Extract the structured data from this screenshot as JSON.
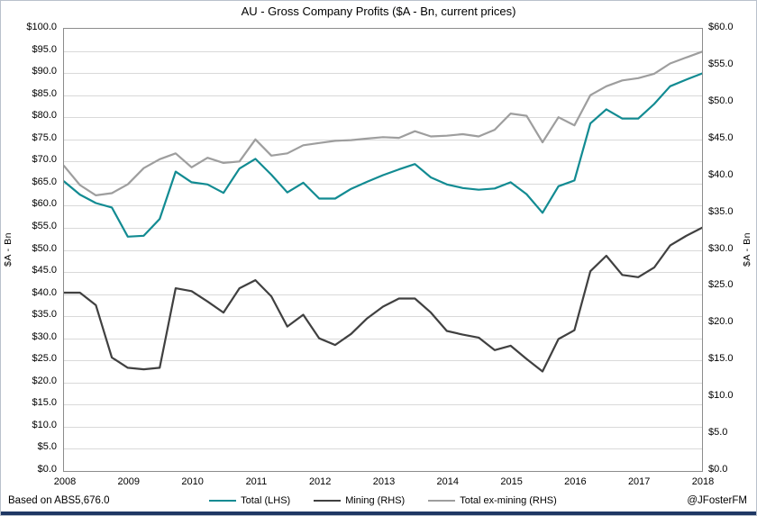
{
  "title": "AU - Gross Company Profits ($A - Bn, current prices)",
  "footer": {
    "left": "Based on ABS5,676.0",
    "right": "@JFosterFM"
  },
  "colors": {
    "total": "#128b92",
    "mining": "#404040",
    "ex_mining": "#9e9e9e",
    "gridline": "#d9d9d9",
    "plot_border": "#8c8c8c",
    "bottom_bar": "#1f3864"
  },
  "legend": [
    {
      "label": "Total (LHS)",
      "color": "#128b92"
    },
    {
      "label": "Mining (RHS)",
      "color": "#404040"
    },
    {
      "label": "Total ex-mining (RHS)",
      "color": "#9e9e9e"
    }
  ],
  "chart_data": {
    "type": "line",
    "title": "AU - Gross Company Profits ($A - Bn, current prices)",
    "grid": true,
    "legend_position": "bottom",
    "left_axis": {
      "label": "$A - Bn",
      "ylim": [
        0,
        100
      ],
      "step": 5,
      "tick_labels": [
        "$100.0",
        "$95.0",
        "$90.0",
        "$85.0",
        "$80.0",
        "$75.0",
        "$70.0",
        "$65.0",
        "$60.0",
        "$55.0",
        "$50.0",
        "$45.0",
        "$40.0",
        "$35.0",
        "$30.0",
        "$25.0",
        "$20.0",
        "$15.0",
        "$10.0",
        "$5.0",
        "$0.0"
      ]
    },
    "right_axis": {
      "label": "$A - Bn",
      "ylim": [
        0,
        60
      ],
      "step": 5,
      "tick_labels": [
        "$60.0",
        "$55.0",
        "$50.0",
        "$45.0",
        "$40.0",
        "$35.0",
        "$30.0",
        "$25.0",
        "$20.0",
        "$15.0",
        "$10.0",
        "$5.0",
        "$0.0"
      ]
    },
    "x_tick_labels": [
      "2008",
      "2009",
      "2010",
      "2011",
      "2012",
      "2013",
      "2014",
      "2015",
      "2016",
      "2017",
      "2018"
    ],
    "x": [
      "2008Q1",
      "2008Q2",
      "2008Q3",
      "2008Q4",
      "2009Q1",
      "2009Q2",
      "2009Q3",
      "2009Q4",
      "2010Q1",
      "2010Q2",
      "2010Q3",
      "2010Q4",
      "2011Q1",
      "2011Q2",
      "2011Q3",
      "2011Q4",
      "2012Q1",
      "2012Q2",
      "2012Q3",
      "2012Q4",
      "2013Q1",
      "2013Q2",
      "2013Q3",
      "2013Q4",
      "2014Q1",
      "2014Q2",
      "2014Q3",
      "2014Q4",
      "2015Q1",
      "2015Q2",
      "2015Q3",
      "2015Q4",
      "2016Q1",
      "2016Q2",
      "2016Q3",
      "2016Q4",
      "2017Q1",
      "2017Q2",
      "2017Q3",
      "2017Q4",
      "2018Q1"
    ],
    "series": [
      {
        "name": "Total (LHS)",
        "axis": "left",
        "color": "#128b92",
        "values": [
          65.5,
          62.5,
          60.6,
          59.6,
          53.0,
          53.2,
          57.0,
          67.7,
          65.3,
          64.8,
          62.9,
          68.4,
          70.6,
          67.0,
          63.0,
          65.2,
          61.6,
          61.6,
          63.8,
          65.4,
          66.9,
          68.2,
          69.4,
          66.4,
          64.8,
          64.0,
          63.6,
          63.9,
          65.3,
          62.6,
          58.4,
          64.4,
          65.7,
          78.6,
          81.8,
          79.7,
          79.7,
          83.0,
          87.0,
          88.5,
          89.9
        ]
      },
      {
        "name": "Mining (RHS)",
        "axis": "right",
        "color": "#404040",
        "values": [
          24.2,
          24.2,
          22.5,
          15.4,
          14.0,
          13.8,
          14.0,
          24.8,
          24.4,
          23.0,
          21.5,
          24.8,
          25.9,
          23.7,
          19.6,
          21.2,
          18.0,
          17.1,
          18.6,
          20.7,
          22.3,
          23.4,
          23.4,
          21.5,
          19.0,
          18.5,
          18.1,
          16.4,
          17.0,
          15.2,
          13.5,
          17.9,
          19.1,
          27.1,
          29.2,
          26.6,
          26.3,
          27.6,
          30.6,
          31.9,
          33.0
        ]
      },
      {
        "name": "Total ex-mining (RHS)",
        "axis": "right",
        "color": "#9e9e9e",
        "values": [
          41.4,
          38.8,
          37.4,
          37.7,
          38.9,
          41.1,
          42.3,
          43.1,
          41.2,
          42.5,
          41.8,
          42.0,
          45.0,
          42.8,
          43.1,
          44.2,
          44.5,
          44.8,
          44.9,
          45.1,
          45.3,
          45.2,
          46.1,
          45.4,
          45.5,
          45.7,
          45.4,
          46.3,
          48.5,
          48.2,
          44.6,
          48.0,
          46.9,
          51.0,
          52.2,
          53.0,
          53.3,
          53.9,
          55.3,
          56.1,
          56.9
        ]
      }
    ]
  }
}
